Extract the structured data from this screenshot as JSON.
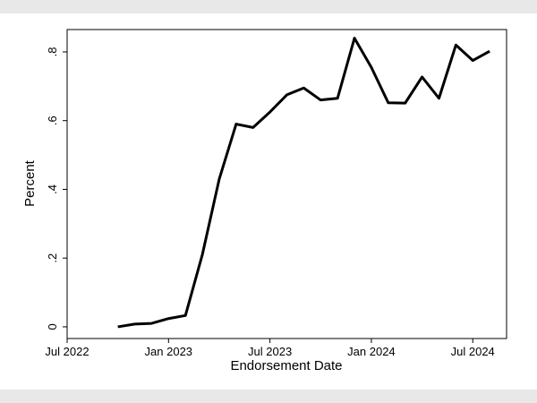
{
  "chart_data": {
    "type": "line",
    "x_label": "Endorsement Date",
    "y_label": "Percent",
    "x": [
      "2022-10",
      "2022-11",
      "2022-12",
      "2023-01",
      "2023-02",
      "2023-03",
      "2023-04",
      "2023-05",
      "2023-06",
      "2023-07",
      "2023-08",
      "2023-09",
      "2023-10",
      "2023-11",
      "2023-12",
      "2024-01",
      "2024-02",
      "2024-03",
      "2024-04",
      "2024-05",
      "2024-06",
      "2024-07",
      "2024-08"
    ],
    "series": [
      {
        "color": "#000000",
        "values": [
          0.0,
          0.008,
          0.01,
          0.024,
          0.033,
          0.21,
          0.43,
          0.59,
          0.58,
          0.625,
          0.675,
          0.695,
          0.66,
          0.665,
          0.84,
          0.755,
          0.652,
          0.651,
          0.727,
          0.665,
          0.82,
          0.775,
          0.802
        ]
      }
    ],
    "xlim": [
      "2022-07",
      "2024-09"
    ],
    "xticks": [
      {
        "value": "2022-07",
        "label": "Jul 2022"
      },
      {
        "value": "2023-01",
        "label": "Jan 2023"
      },
      {
        "value": "2023-07",
        "label": "Jul 2023"
      },
      {
        "value": "2024-01",
        "label": "Jan 2024"
      },
      {
        "value": "2024-07",
        "label": "Jul 2024"
      }
    ],
    "ylim": [
      -0.034,
      0.865
    ],
    "yticks": [
      0,
      {
        "value": 0.2,
        "label": ".2"
      },
      {
        "value": 0.4,
        "label": ".4"
      },
      {
        "value": 0.6,
        "label": ".6"
      },
      {
        "value": 0.8,
        "label": ".8"
      }
    ]
  }
}
